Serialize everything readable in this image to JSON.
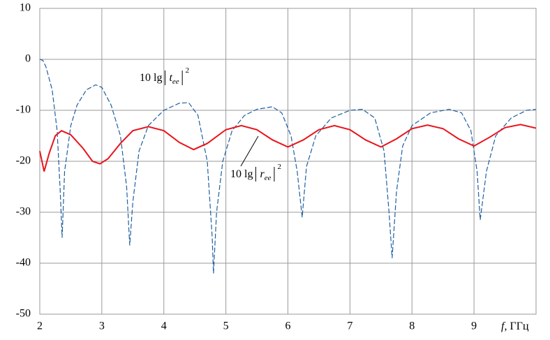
{
  "chart_data": {
    "type": "line",
    "x_label": {
      "symbol": "f",
      "unit": ", ГГц"
    },
    "annotations": [
      {
        "prefix": "10 lg",
        "symbol": "t",
        "subscript": "ee",
        "power": "2"
      },
      {
        "prefix": "10 lg",
        "symbol": "r",
        "subscript": "ee",
        "power": "2"
      }
    ],
    "xlim": [
      2,
      10
    ],
    "xticks": [
      2,
      3,
      4,
      5,
      6,
      7,
      8,
      9
    ],
    "ylim": [
      -50,
      10
    ],
    "yticks": [
      -50,
      -40,
      -30,
      -20,
      -10,
      0,
      10
    ],
    "grid": true,
    "series": [
      {
        "color": "#1f5f9f",
        "dashed": true,
        "x": [
          2.0,
          2.05,
          2.1,
          2.2,
          2.28,
          2.33,
          2.36,
          2.4,
          2.5,
          2.6,
          2.75,
          2.9,
          3.0,
          3.15,
          3.3,
          3.4,
          3.45,
          3.5,
          3.6,
          3.75,
          4.0,
          4.25,
          4.4,
          4.55,
          4.7,
          4.78,
          4.8,
          4.85,
          4.95,
          5.1,
          5.3,
          5.5,
          5.75,
          5.9,
          6.05,
          6.15,
          6.23,
          6.3,
          6.45,
          6.7,
          7.0,
          7.2,
          7.4,
          7.55,
          7.63,
          7.68,
          7.75,
          7.85,
          8.0,
          8.3,
          8.6,
          8.8,
          8.95,
          9.05,
          9.1,
          9.2,
          9.35,
          9.6,
          9.85,
          10.0
        ],
        "values": [
          0,
          -0.2,
          -1.5,
          -6,
          -14,
          -26,
          -35,
          -22,
          -13,
          -9,
          -6,
          -5,
          -5.5,
          -9,
          -15,
          -25,
          -36.5,
          -28,
          -18,
          -13,
          -10,
          -8.6,
          -8.5,
          -11,
          -20,
          -35,
          -42,
          -30,
          -20,
          -14,
          -11,
          -9.8,
          -9.3,
          -10.5,
          -15,
          -22,
          -31,
          -21,
          -15,
          -11.5,
          -10,
          -9.8,
          -11.5,
          -18,
          -30,
          -39,
          -26,
          -17,
          -13,
          -10.5,
          -9.8,
          -10.5,
          -14,
          -22,
          -31.5,
          -22,
          -15,
          -11.5,
          -10,
          -9.8
        ]
      },
      {
        "color": "#e8141c",
        "dashed": false,
        "x": [
          2.0,
          2.07,
          2.15,
          2.25,
          2.35,
          2.5,
          2.7,
          2.85,
          2.97,
          3.1,
          3.3,
          3.5,
          3.75,
          4.0,
          4.25,
          4.48,
          4.7,
          5.0,
          5.25,
          5.5,
          5.75,
          6.0,
          6.25,
          6.5,
          6.75,
          7.0,
          7.25,
          7.5,
          7.75,
          8.0,
          8.25,
          8.5,
          8.75,
          9.0,
          9.25,
          9.5,
          9.75,
          10.0
        ],
        "values": [
          -18,
          -22,
          -18.5,
          -15,
          -14,
          -14.8,
          -17.5,
          -20,
          -20.5,
          -19.5,
          -16.5,
          -14,
          -13.2,
          -14,
          -16.3,
          -17.7,
          -16.5,
          -13.8,
          -13,
          -13.8,
          -15.8,
          -17.2,
          -15.8,
          -13.8,
          -13,
          -13.8,
          -15.8,
          -17.2,
          -15.6,
          -13.6,
          -12.9,
          -13.6,
          -15.6,
          -17,
          -15.3,
          -13.4,
          -12.8,
          -13.5
        ]
      }
    ]
  }
}
